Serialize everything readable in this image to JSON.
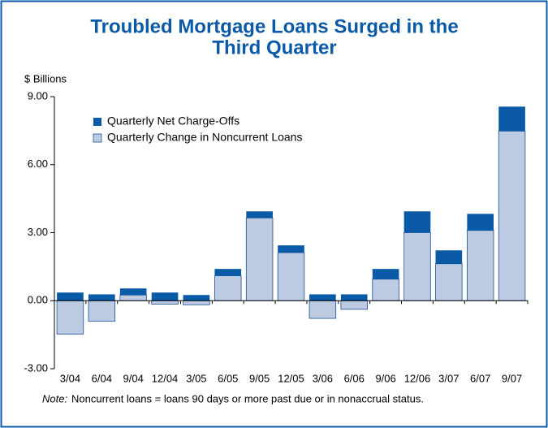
{
  "chart_data": {
    "type": "stacked_bar",
    "title": [
      "Troubled Mortgage Loans Surged in the",
      "Third Quarter"
    ],
    "y_label": "$ Billions",
    "categories": [
      "3/04",
      "6/04",
      "9/04",
      "12/04",
      "3/05",
      "6/05",
      "9/05",
      "12/05",
      "3/06",
      "6/06",
      "9/06",
      "12/06",
      "3/07",
      "6/07",
      "9/07"
    ],
    "series": [
      {
        "name": "Quarterly Change in Noncurrent Loans",
        "color": "#bccbe2",
        "values": [
          -1.47,
          -0.9,
          0.25,
          -0.15,
          -0.18,
          1.1,
          3.65,
          2.12,
          -0.78,
          -0.38,
          0.95,
          3.0,
          1.63,
          3.1,
          7.48
        ]
      },
      {
        "name": "Quarterly Net Charge-Offs",
        "color": "#0a5aa8",
        "values": [
          0.36,
          0.28,
          0.29,
          0.36,
          0.25,
          0.3,
          0.29,
          0.32,
          0.28,
          0.28,
          0.45,
          0.94,
          0.59,
          0.73,
          1.08
        ]
      }
    ],
    "legend_order": [
      1,
      0
    ],
    "ylim": [
      -3,
      9
    ],
    "yticks": [
      {
        "value": -3,
        "label": "-3.00"
      },
      {
        "value": 0,
        "label": "0.00"
      },
      {
        "value": 3,
        "label": "3.00"
      },
      {
        "value": 6,
        "label": "6.00"
      },
      {
        "value": 9,
        "label": "9.00"
      }
    ],
    "note_label": "Note:",
    "note": "Noncurrent loans = loans 90 days or more past due or in nonaccrual status."
  }
}
